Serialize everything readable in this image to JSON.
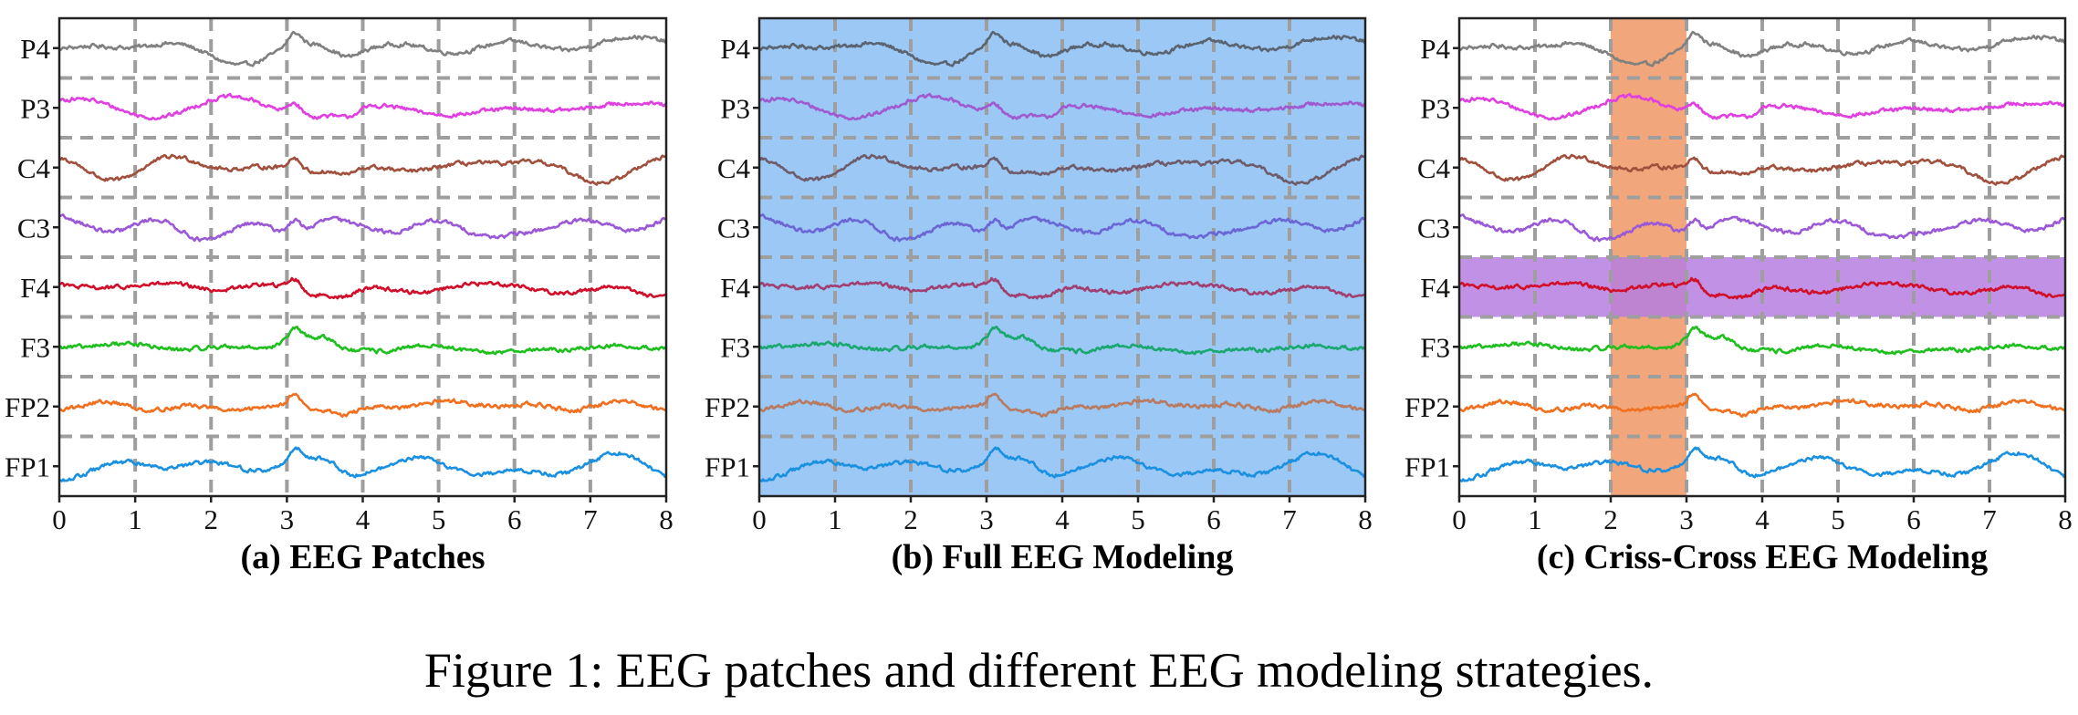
{
  "caption": "Figure 1: EEG patches and different EEG modeling strategies.",
  "chart_data": [
    {
      "type": "line",
      "title": "(a) EEG Patches",
      "xlim": [
        0,
        8
      ],
      "xticks": [
        0,
        1,
        2,
        3,
        4,
        5,
        6,
        7,
        8
      ],
      "grid": "dashed",
      "channels": [
        "P4",
        "P3",
        "C4",
        "C3",
        "F4",
        "F3",
        "FP2",
        "FP1"
      ],
      "series": [
        {
          "name": "P4",
          "color": "#808080"
        },
        {
          "name": "P3",
          "color": "#e040e0"
        },
        {
          "name": "C4",
          "color": "#a0503c"
        },
        {
          "name": "C3",
          "color": "#9b59d6"
        },
        {
          "name": "F4",
          "color": "#d0102a"
        },
        {
          "name": "F3",
          "color": "#1fbf1f"
        },
        {
          "name": "FP2",
          "color": "#f07020"
        },
        {
          "name": "FP1",
          "color": "#1a90e0"
        }
      ],
      "highlight": []
    },
    {
      "type": "line",
      "title": "(b) Full EEG Modeling",
      "xlim": [
        0,
        8
      ],
      "xticks": [
        0,
        1,
        2,
        3,
        4,
        5,
        6,
        7,
        8
      ],
      "grid": "dashed",
      "channels": [
        "P4",
        "P3",
        "C4",
        "C3",
        "F4",
        "F3",
        "FP2",
        "FP1"
      ],
      "series": [
        {
          "name": "P4",
          "color": "#5a6470"
        },
        {
          "name": "P3",
          "color": "#a05ad0"
        },
        {
          "name": "C4",
          "color": "#6e5c6a"
        },
        {
          "name": "C3",
          "color": "#6a66d6"
        },
        {
          "name": "F4",
          "color": "#a04070"
        },
        {
          "name": "F3",
          "color": "#1aa870"
        },
        {
          "name": "FP2",
          "color": "#b87a60"
        },
        {
          "name": "FP1",
          "color": "#1a90e0"
        }
      ],
      "highlight": [
        {
          "kind": "full",
          "color": "#9cc8f5"
        }
      ]
    },
    {
      "type": "line",
      "title": "(c) Criss-Cross EEG Modeling",
      "xlim": [
        0,
        8
      ],
      "xticks": [
        0,
        1,
        2,
        3,
        4,
        5,
        6,
        7,
        8
      ],
      "grid": "dashed",
      "channels": [
        "P4",
        "P3",
        "C4",
        "C3",
        "F4",
        "F3",
        "FP2",
        "FP1"
      ],
      "series": [
        {
          "name": "P4",
          "color": "#808080"
        },
        {
          "name": "P3",
          "color": "#e040e0"
        },
        {
          "name": "C4",
          "color": "#a0503c"
        },
        {
          "name": "C3",
          "color": "#9b59d6"
        },
        {
          "name": "F4",
          "color": "#d0102a"
        },
        {
          "name": "F3",
          "color": "#1fbf1f"
        },
        {
          "name": "FP2",
          "color": "#f07020"
        },
        {
          "name": "FP1",
          "color": "#1a90e0"
        }
      ],
      "highlight": [
        {
          "kind": "time",
          "x": [
            2,
            3
          ],
          "color": "#f0a070"
        },
        {
          "kind": "channel",
          "channel": "F4",
          "color": "#b67ee0"
        }
      ]
    }
  ]
}
